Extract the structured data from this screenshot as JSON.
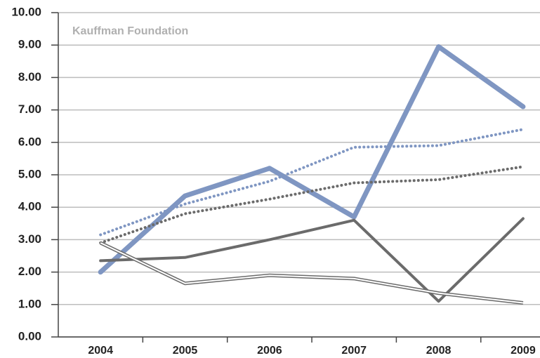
{
  "chart_data": {
    "type": "line",
    "annotation": "Kauffman Foundation",
    "categories": [
      "2004",
      "2005",
      "2006",
      "2007",
      "2008",
      "2009"
    ],
    "series": [
      {
        "color": "#7f96c2",
        "style": "thick",
        "values": [
          2.0,
          4.35,
          5.2,
          3.7,
          8.95,
          7.1
        ]
      },
      {
        "color": "#7f96c2",
        "style": "dotted",
        "values": [
          3.15,
          4.1,
          4.8,
          5.85,
          5.9,
          6.4
        ]
      },
      {
        "color": "#6b6b6b",
        "style": "dotted",
        "values": [
          2.9,
          3.8,
          4.25,
          4.75,
          4.85,
          5.25
        ]
      },
      {
        "color": "#6b6b6b",
        "style": "medium",
        "values": [
          2.35,
          2.45,
          3.0,
          3.6,
          1.1,
          3.65
        ]
      },
      {
        "color": "#6b6b6b",
        "style": "double",
        "values": [
          2.9,
          1.65,
          1.9,
          1.8,
          1.35,
          1.05
        ]
      }
    ],
    "ylim": [
      0,
      10
    ],
    "yticks": [
      {
        "value": 0,
        "label": "0.00"
      },
      {
        "value": 1,
        "label": "1.00"
      },
      {
        "value": 2,
        "label": "2.00"
      },
      {
        "value": 3,
        "label": "3.00"
      },
      {
        "value": 4,
        "label": "4.00"
      },
      {
        "value": 5,
        "label": "5.00"
      },
      {
        "value": 6,
        "label": "6.00"
      },
      {
        "value": 7,
        "label": "7.00"
      },
      {
        "value": 8,
        "label": "8.00"
      },
      {
        "value": 9,
        "label": "9.00"
      },
      {
        "value": 10,
        "label": "10.00"
      }
    ],
    "grid": true
  }
}
